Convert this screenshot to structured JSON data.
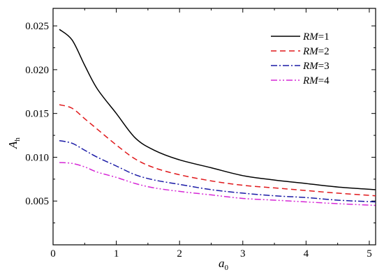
{
  "chart_data": {
    "type": "line",
    "title": "",
    "xlabel": "a",
    "xlabel_subscript": "0",
    "ylabel": "A",
    "ylabel_subscript": "h",
    "xlim": [
      0,
      5.1
    ],
    "ylim": [
      0,
      0.027
    ],
    "xticks": [
      0,
      1,
      2,
      3,
      4,
      5
    ],
    "yticks": [
      0.005,
      0.01,
      0.015,
      0.02,
      0.025
    ],
    "xtick_labels": [
      "0",
      "1",
      "2",
      "3",
      "4",
      "5"
    ],
    "ytick_labels": [
      "0.005",
      "0.010",
      "0.015",
      "0.020",
      "0.025"
    ],
    "grid": false,
    "legend_position": "top-right",
    "x": [
      0.1,
      0.3,
      0.5,
      0.7,
      1.0,
      1.3,
      1.6,
      2.0,
      2.5,
      3.0,
      3.5,
      4.0,
      4.5,
      5.1
    ],
    "series": [
      {
        "name": "RM=1",
        "name_italic": "RM",
        "name_rest": "=1",
        "color": "#000000",
        "dash": "solid",
        "values": [
          0.0246,
          0.0234,
          0.0205,
          0.0178,
          0.015,
          0.0122,
          0.0108,
          0.0097,
          0.0088,
          0.0079,
          0.0074,
          0.007,
          0.0066,
          0.0063
        ]
      },
      {
        "name": "RM=2",
        "name_italic": "RM",
        "name_rest": "=2",
        "color": "#e0181b",
        "dash": "dashed",
        "values": [
          0.016,
          0.0156,
          0.0144,
          0.0132,
          0.0114,
          0.0098,
          0.0088,
          0.008,
          0.0073,
          0.0068,
          0.0065,
          0.0062,
          0.0059,
          0.0056
        ]
      },
      {
        "name": "RM=3",
        "name_italic": "RM",
        "name_rest": "=3",
        "color": "#1a1aa6",
        "dash": "dashdot",
        "values": [
          0.0119,
          0.0116,
          0.0108,
          0.01,
          0.009,
          0.008,
          0.0074,
          0.0069,
          0.0063,
          0.0059,
          0.0056,
          0.0054,
          0.0051,
          0.0049
        ]
      },
      {
        "name": "RM=4",
        "name_italic": "RM",
        "name_rest": "=4",
        "color": "#d628d6",
        "dash": "dashdotdot",
        "values": [
          0.0094,
          0.0093,
          0.0089,
          0.0083,
          0.0077,
          0.007,
          0.0065,
          0.0061,
          0.0057,
          0.0053,
          0.0051,
          0.0049,
          0.0047,
          0.0045
        ]
      }
    ]
  }
}
